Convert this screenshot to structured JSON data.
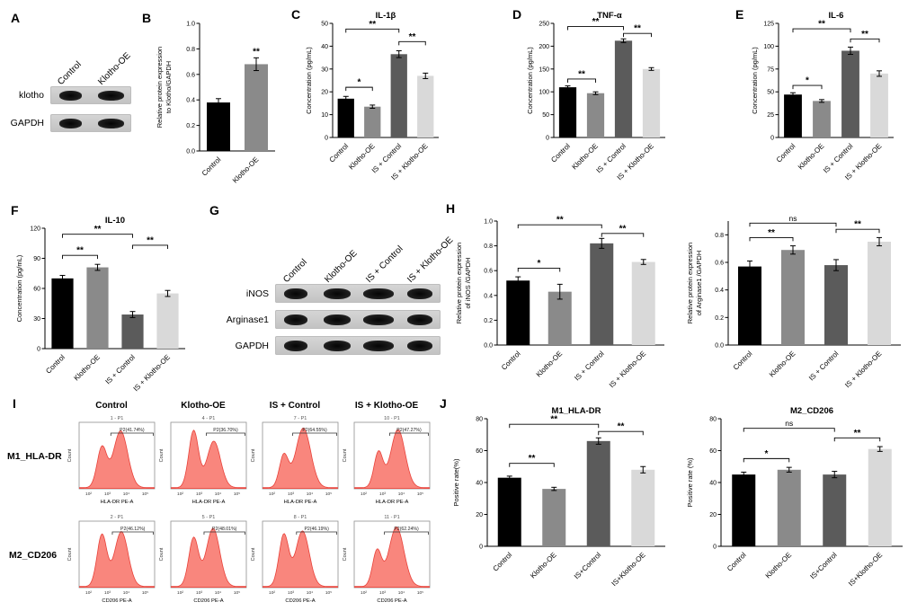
{
  "panels": {
    "A": {
      "letter": "A",
      "lanes": [
        "Control",
        "Klotho-OE"
      ],
      "rows": [
        "klotho",
        "GAPDH"
      ]
    },
    "B": {
      "letter": "B"
    },
    "C": {
      "letter": "C"
    },
    "D": {
      "letter": "D"
    },
    "E": {
      "letter": "E"
    },
    "F": {
      "letter": "F"
    },
    "G": {
      "letter": "G",
      "lanes": [
        "Control",
        "Klotho-OE",
        "IS + Control",
        "IS + Klotho-OE"
      ],
      "rows": [
        "iNOS",
        "Arginase1",
        "GAPDH"
      ]
    },
    "H": {
      "letter": "H"
    },
    "I": {
      "letter": "I",
      "col_headers": [
        "Control",
        "Klotho-OE",
        "IS + Control",
        "IS + Klotho-OE"
      ],
      "row_labels": [
        "M1_HLA-DR",
        "M2_CD206"
      ],
      "ylabel": "Count",
      "xticks": [
        "10²",
        "10³",
        "10⁴",
        "10⁵"
      ]
    },
    "J": {
      "letter": "J"
    }
  },
  "colors": {
    "bar_control": "#000000",
    "bar_klotho_oe": "#8a8a8a",
    "bar_is_control": "#5b5b5b",
    "bar_is_klotho_oe": "#d9d9d9",
    "hist_fill": "#f9867d",
    "hist_stroke": "#e8423a"
  },
  "chart_data": [
    {
      "panel": "chartB",
      "type": "bar",
      "title": "",
      "ylabel": [
        "Relative protein expression",
        "to Klotho/GAPDH"
      ],
      "ymax": 1.0,
      "yticks": [
        0,
        0.2,
        0.4,
        0.6,
        0.8,
        1.0
      ],
      "ytick_labels": [
        "0.0",
        "0.2",
        "0.4",
        "0.6",
        "0.8",
        "1.0"
      ],
      "categories": [
        "Control",
        "Klotho-OE"
      ],
      "values": [
        0.38,
        0.68
      ],
      "errors": [
        0.03,
        0.05
      ],
      "colors": [
        "#000000",
        "#8a8a8a"
      ],
      "stars": [
        {
          "bar": 1,
          "label": "**"
        }
      ]
    },
    {
      "panel": "chartC",
      "type": "bar",
      "title": "IL-1β",
      "ylabel": [
        "Concentration (pg/mL)"
      ],
      "ymax": 50,
      "yticks": [
        0,
        10,
        20,
        30,
        40,
        50
      ],
      "ytick_labels": [
        "0",
        "10",
        "20",
        "30",
        "40",
        "50"
      ],
      "categories": [
        "Control",
        "Klotho-OE",
        "IS + Control",
        "IS + Klotho-OE"
      ],
      "values": [
        17,
        13.5,
        36.5,
        27
      ],
      "errors": [
        1,
        0.7,
        1.5,
        1.2
      ],
      "colors": [
        "#000000",
        "#8a8a8a",
        "#5b5b5b",
        "#d9d9d9"
      ],
      "brackets": [
        {
          "from": 0,
          "to": 1,
          "label": "*",
          "y": 22
        },
        {
          "from": 2,
          "to": 3,
          "label": "**",
          "y": 42
        },
        {
          "from": 0,
          "to": 2,
          "label": "**",
          "y": 47.5
        }
      ]
    },
    {
      "panel": "chartD",
      "type": "bar",
      "title": "TNF-α",
      "ylabel": [
        "Concentration (pg/mL)"
      ],
      "ymax": 250,
      "yticks": [
        0,
        50,
        100,
        150,
        200,
        250
      ],
      "ytick_labels": [
        "0",
        "50",
        "100",
        "150",
        "200",
        "250"
      ],
      "categories": [
        "Control",
        "Klotho-OE",
        "IS + Control",
        "IS + Klotho-OE"
      ],
      "values": [
        110,
        97,
        212,
        150
      ],
      "errors": [
        3,
        3,
        4,
        3
      ],
      "colors": [
        "#000000",
        "#8a8a8a",
        "#5b5b5b",
        "#d9d9d9"
      ],
      "brackets": [
        {
          "from": 0,
          "to": 1,
          "label": "**",
          "y": 128
        },
        {
          "from": 2,
          "to": 3,
          "label": "**",
          "y": 228
        },
        {
          "from": 0,
          "to": 2,
          "label": "**",
          "y": 243
        }
      ]
    },
    {
      "panel": "chartE",
      "type": "bar",
      "title": "IL-6",
      "ylabel": [
        "Concentration (pg/mL)"
      ],
      "ymax": 125,
      "yticks": [
        0,
        25,
        50,
        75,
        100,
        125
      ],
      "ytick_labels": [
        "0",
        "25",
        "50",
        "75",
        "100",
        "125"
      ],
      "categories": [
        "Control",
        "Klotho-OE",
        "IS + Control",
        "IS + Klotho-OE"
      ],
      "values": [
        47,
        40,
        95,
        70
      ],
      "errors": [
        2,
        1.5,
        4,
        3
      ],
      "colors": [
        "#000000",
        "#8a8a8a",
        "#5b5b5b",
        "#d9d9d9"
      ],
      "brackets": [
        {
          "from": 0,
          "to": 1,
          "label": "*",
          "y": 57
        },
        {
          "from": 2,
          "to": 3,
          "label": "**",
          "y": 108
        },
        {
          "from": 0,
          "to": 2,
          "label": "**",
          "y": 119
        }
      ]
    },
    {
      "panel": "chartF",
      "type": "bar",
      "title": "IL-10",
      "ylabel": [
        "Concentration (pg/mL)"
      ],
      "ymax": 120,
      "yticks": [
        0,
        30,
        60,
        90,
        120
      ],
      "ytick_labels": [
        "0",
        "30",
        "60",
        "90",
        "120"
      ],
      "categories": [
        "Control",
        "Klotho-OE",
        "IS + Control",
        "IS + Klotho-OE"
      ],
      "values": [
        70,
        81,
        34,
        55
      ],
      "errors": [
        3,
        3,
        3,
        3
      ],
      "colors": [
        "#000000",
        "#8a8a8a",
        "#5b5b5b",
        "#d9d9d9"
      ],
      "brackets": [
        {
          "from": 0,
          "to": 1,
          "label": "**",
          "y": 93
        },
        {
          "from": 2,
          "to": 3,
          "label": "**",
          "y": 103
        },
        {
          "from": 0,
          "to": 2,
          "label": "**",
          "y": 114
        }
      ]
    },
    {
      "panel": "chartH1",
      "type": "bar",
      "title": "",
      "ylabel": [
        "Relative protein expression",
        "of iNOS /GAPDH"
      ],
      "ymax": 1.0,
      "yticks": [
        0,
        0.2,
        0.4,
        0.6,
        0.8,
        1.0
      ],
      "ytick_labels": [
        "0.0",
        "0.2",
        "0.4",
        "0.6",
        "0.8",
        "1.0"
      ],
      "categories": [
        "Control",
        "Klotho-OE",
        "IS + Control",
        "IS + Klotho-OE"
      ],
      "values": [
        0.52,
        0.43,
        0.82,
        0.67
      ],
      "errors": [
        0.03,
        0.06,
        0.04,
        0.02
      ],
      "colors": [
        "#000000",
        "#8a8a8a",
        "#5b5b5b",
        "#d9d9d9"
      ],
      "brackets": [
        {
          "from": 0,
          "to": 1,
          "label": "*",
          "y": 0.62
        },
        {
          "from": 2,
          "to": 3,
          "label": "**",
          "y": 0.9
        },
        {
          "from": 0,
          "to": 2,
          "label": "**",
          "y": 0.97
        }
      ]
    },
    {
      "panel": "chartH2",
      "type": "bar",
      "title": "",
      "ylabel": [
        "Relative protein expression",
        "of Arginase1 /GAPDH"
      ],
      "ymax": 0.9,
      "yticks": [
        0,
        0.2,
        0.4,
        0.6,
        0.8
      ],
      "ytick_labels": [
        "0.0",
        "0.2",
        "0.4",
        "0.6",
        "0.8"
      ],
      "categories": [
        "Control",
        "Klotho-OE",
        "IS + Control",
        "IS + Klotho-OE"
      ],
      "values": [
        0.57,
        0.69,
        0.58,
        0.75
      ],
      "errors": [
        0.04,
        0.03,
        0.04,
        0.03
      ],
      "colors": [
        "#000000",
        "#8a8a8a",
        "#5b5b5b",
        "#d9d9d9"
      ],
      "brackets": [
        {
          "from": 0,
          "to": 1,
          "label": "**",
          "y": 0.78
        },
        {
          "from": 2,
          "to": 3,
          "label": "**",
          "y": 0.84
        },
        {
          "from": 0,
          "to": 2,
          "label": "ns",
          "y": 0.885
        }
      ]
    },
    {
      "panel": "chartJ1",
      "type": "bar",
      "title": "M1_HLA-DR",
      "ylabel": [
        "Positive rate(%)"
      ],
      "ymax": 80,
      "yticks": [
        0,
        20,
        40,
        60,
        80
      ],
      "ytick_labels": [
        "0",
        "20",
        "40",
        "60",
        "80"
      ],
      "categories": [
        "Control",
        "Klotho-OE",
        "IS+Control",
        "IS+Klotho-OE"
      ],
      "values": [
        43,
        36,
        66,
        48
      ],
      "errors": [
        1,
        1,
        2,
        2
      ],
      "colors": [
        "#000000",
        "#8a8a8a",
        "#5b5b5b",
        "#d9d9d9"
      ],
      "brackets": [
        {
          "from": 0,
          "to": 1,
          "label": "**",
          "y": 52
        },
        {
          "from": 2,
          "to": 3,
          "label": "**",
          "y": 72
        },
        {
          "from": 0,
          "to": 2,
          "label": "**",
          "y": 76.5
        }
      ]
    },
    {
      "panel": "chartJ2",
      "type": "bar",
      "title": "M2_CD206",
      "ylabel": [
        "Positive rate (%)"
      ],
      "ymax": 80,
      "yticks": [
        0,
        20,
        40,
        60,
        80
      ],
      "ytick_labels": [
        "0",
        "20",
        "40",
        "60",
        "80"
      ],
      "categories": [
        "Control",
        "Klotho-OE",
        "IS+Control",
        "IS+Klotho-OE"
      ],
      "values": [
        45,
        48,
        45,
        61
      ],
      "errors": [
        1.5,
        1.5,
        2,
        1.5
      ],
      "colors": [
        "#000000",
        "#8a8a8a",
        "#5b5b5b",
        "#d9d9d9"
      ],
      "brackets": [
        {
          "from": 0,
          "to": 1,
          "label": "*",
          "y": 55
        },
        {
          "from": 2,
          "to": 3,
          "label": "**",
          "y": 68
        },
        {
          "from": 0,
          "to": 2,
          "label": "ns",
          "y": 74
        }
      ]
    }
  ],
  "flow": {
    "rows": [
      {
        "label": "M1_HLA-DR",
        "xlabel": "HLA-DR PE-A",
        "plots": [
          {
            "sub": "1 - P1",
            "gate": "P2(41.74%)",
            "gateFrom": 0.42,
            "peaks": [
              [
                0.3,
                0.62,
                0.065
              ],
              [
                0.55,
                0.88,
                0.095
              ]
            ]
          },
          {
            "sub": "4 - P1",
            "gate": "P2(36.70%)",
            "gateFrom": 0.47,
            "peaks": [
              [
                0.3,
                0.88,
                0.065
              ],
              [
                0.57,
                0.72,
                0.09
              ]
            ]
          },
          {
            "sub": "7 - P1",
            "gate": "P2(64.55%)",
            "gateFrom": 0.4,
            "peaks": [
              [
                0.28,
                0.5,
                0.06
              ],
              [
                0.54,
                0.92,
                0.1
              ]
            ]
          },
          {
            "sub": "10 - P1",
            "gate": "P2(47.27%)",
            "gateFrom": 0.47,
            "peaks": [
              [
                0.32,
                0.55,
                0.06
              ],
              [
                0.58,
                0.9,
                0.095
              ]
            ]
          }
        ]
      },
      {
        "label": "M2_CD206",
        "xlabel": "CD206 PE-A",
        "plots": [
          {
            "sub": "2 - P1",
            "gate": "P2(46.12%)",
            "gateFrom": 0.44,
            "peaks": [
              [
                0.3,
                0.8,
                0.065
              ],
              [
                0.56,
                0.85,
                0.09
              ]
            ]
          },
          {
            "sub": "5 - P1",
            "gate": "P2(48.01%)",
            "gateFrom": 0.44,
            "peaks": [
              [
                0.3,
                0.75,
                0.065
              ],
              [
                0.56,
                0.9,
                0.09
              ]
            ]
          },
          {
            "sub": "8 - P1",
            "gate": "P2(46.19%)",
            "gateFrom": 0.45,
            "peaks": [
              [
                0.28,
                0.8,
                0.065
              ],
              [
                0.53,
                0.86,
                0.09
              ]
            ]
          },
          {
            "sub": "11 - P1",
            "gate": "P2(62.24%)",
            "gateFrom": 0.4,
            "peaks": [
              [
                0.3,
                0.55,
                0.06
              ],
              [
                0.56,
                0.92,
                0.1
              ]
            ]
          }
        ]
      }
    ]
  }
}
